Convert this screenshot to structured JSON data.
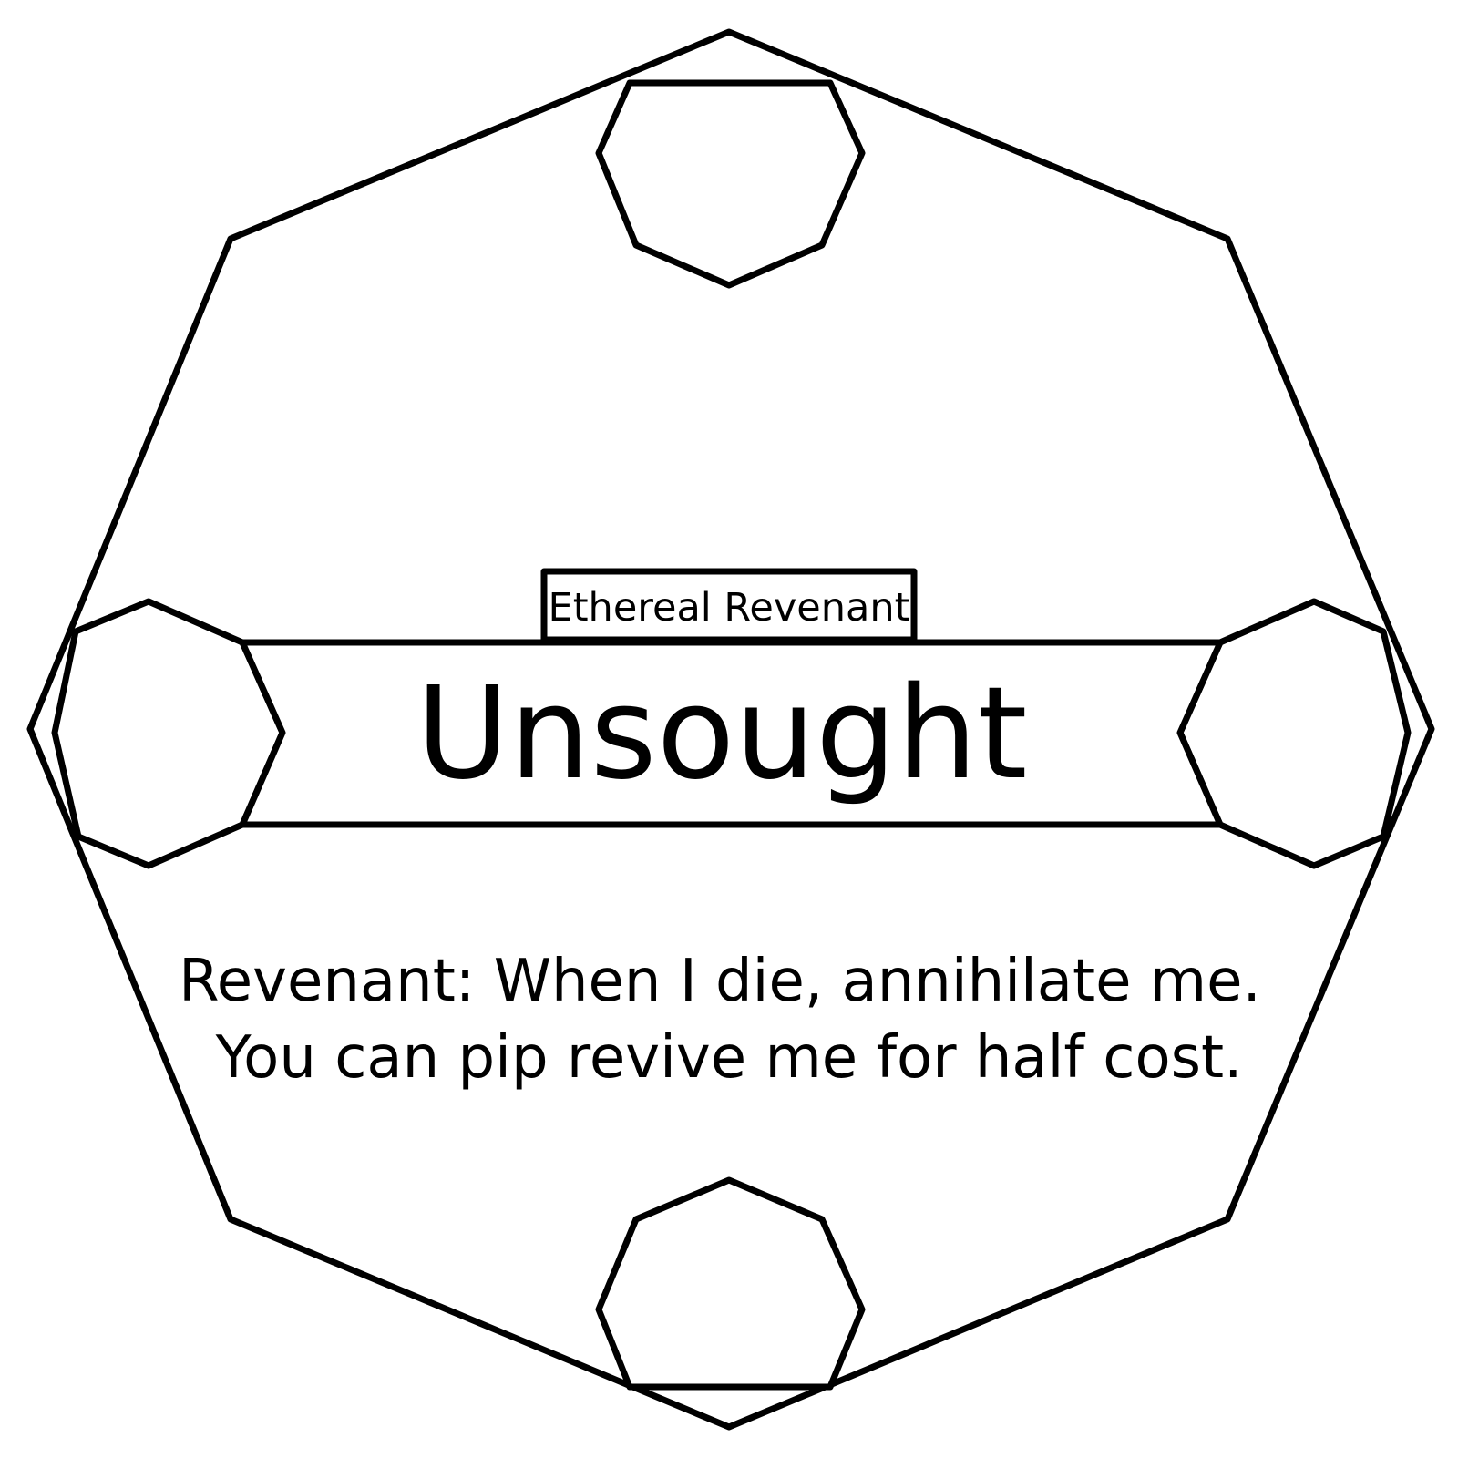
{
  "card": {
    "type_label": "Ethereal Revenant",
    "name": "Unsought",
    "ability": {
      "keyword": "Revenant:",
      "text_line1": " When I die, annihilate me.",
      "text_line2": "You can pip revive me for half cost."
    }
  },
  "colors": {
    "ink": "#000000",
    "background": "#ffffff"
  }
}
